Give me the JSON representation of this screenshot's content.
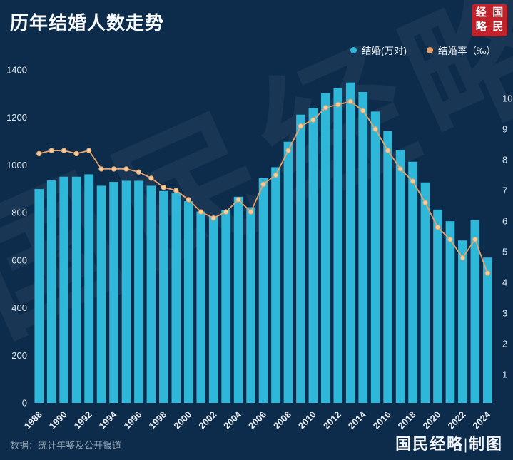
{
  "title": "历年结婚人数走势",
  "watermark": "国民经略",
  "logo": {
    "chars": [
      "经",
      "国",
      "略",
      "民"
    ]
  },
  "legend": [
    {
      "label": "结婚(万对)",
      "color": "#2fb7da"
    },
    {
      "label": "结婚率（‰）",
      "color": "#e7a26c"
    }
  ],
  "footer": {
    "source": "数据：统计年鉴及公开报道",
    "credit": "国民经略|制图"
  },
  "colors": {
    "background": "#0d2c4b",
    "bar": "#2fb7da",
    "line": "#e7a26c",
    "axis_text": "#dce6ef"
  },
  "chart_data": {
    "type": "bar+line",
    "title": "历年结婚人数走势",
    "grid": false,
    "legend_position": "top-right",
    "x": [
      1988,
      1989,
      1990,
      1991,
      1992,
      1993,
      1994,
      1995,
      1996,
      1997,
      1998,
      1999,
      2000,
      2001,
      2002,
      2003,
      2004,
      2005,
      2006,
      2007,
      2008,
      2009,
      2010,
      2011,
      2012,
      2013,
      2014,
      2015,
      2016,
      2017,
      2018,
      2019,
      2020,
      2021,
      2022,
      2023,
      2024
    ],
    "x_tick_every": 2,
    "series": [
      {
        "name": "结婚(万对)",
        "type": "bar",
        "axis": "left",
        "color": "#2fb7da",
        "values": [
          899,
          935,
          951,
          951,
          961,
          913,
          929,
          934,
          934,
          913,
          891,
          885,
          848,
          805,
          786,
          811,
          867,
          823,
          945,
          991,
          1098,
          1212,
          1241,
          1302,
          1323,
          1347,
          1307,
          1225,
          1143,
          1063,
          1014,
          927,
          813,
          764,
          683,
          768,
          611
        ]
      },
      {
        "name": "结婚率（‰）",
        "type": "line",
        "axis": "right",
        "color": "#e7a26c",
        "dot_fill": "#f3cfa0",
        "values": [
          8.2,
          8.3,
          8.3,
          8.2,
          8.3,
          7.7,
          7.7,
          7.7,
          7.6,
          7.4,
          7.1,
          7.0,
          6.7,
          6.3,
          6.1,
          6.3,
          6.7,
          6.3,
          7.2,
          7.5,
          8.3,
          9.1,
          9.3,
          9.7,
          9.8,
          9.9,
          9.6,
          9.0,
          8.3,
          7.7,
          7.3,
          6.6,
          5.8,
          5.4,
          4.8,
          5.4,
          4.3
        ]
      }
    ],
    "left_axis": {
      "min": 0,
      "max": 1400,
      "ticks": [
        0,
        200,
        400,
        600,
        800,
        1000,
        1200,
        1400
      ]
    },
    "right_axis": {
      "min": 1,
      "max": 10,
      "ticks": [
        1,
        2,
        3,
        4,
        5,
        6,
        7,
        8,
        9,
        10
      ]
    }
  }
}
